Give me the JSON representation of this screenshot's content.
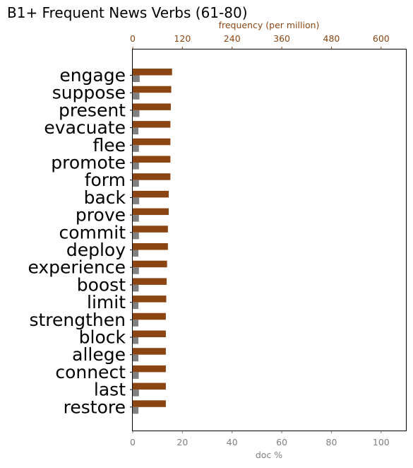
{
  "chart_data": {
    "type": "bar",
    "title": "B1+ Frequent News Verbs (61-80)",
    "categories": [
      "engage",
      "suppose",
      "present",
      "evacuate",
      "flee",
      "promote",
      "form",
      "back",
      "prove",
      "commit",
      "deploy",
      "experience",
      "boost",
      "limit",
      "strengthen",
      "block",
      "allege",
      "connect",
      "last",
      "restore"
    ],
    "series": [
      {
        "name": "frequency",
        "axis": "top",
        "unit": "per million",
        "color": "#8B4513",
        "values": [
          95,
          93,
          92,
          91,
          91,
          91,
          91,
          87,
          87,
          85,
          85,
          83,
          82,
          81,
          80,
          80,
          80,
          80,
          80,
          80
        ]
      },
      {
        "name": "doc %",
        "axis": "bottom",
        "color": "#808080",
        "values": [
          2.8,
          2.7,
          2.7,
          2.3,
          2.5,
          2.5,
          2.5,
          2.6,
          2.5,
          2.5,
          2.3,
          2.5,
          2.4,
          2.3,
          2.3,
          2.3,
          2.3,
          2.4,
          2.5,
          2.3
        ]
      }
    ],
    "x_bottom": {
      "label": "doc %",
      "range": [
        0,
        110
      ],
      "ticks": [
        0,
        20,
        40,
        60,
        80,
        100
      ],
      "color": "#808080"
    },
    "x_top": {
      "label": "frequency (per million)",
      "range": [
        0,
        660
      ],
      "ticks": [
        0,
        120,
        240,
        360,
        480,
        600
      ],
      "color": "#8B4513"
    },
    "grid": false
  }
}
